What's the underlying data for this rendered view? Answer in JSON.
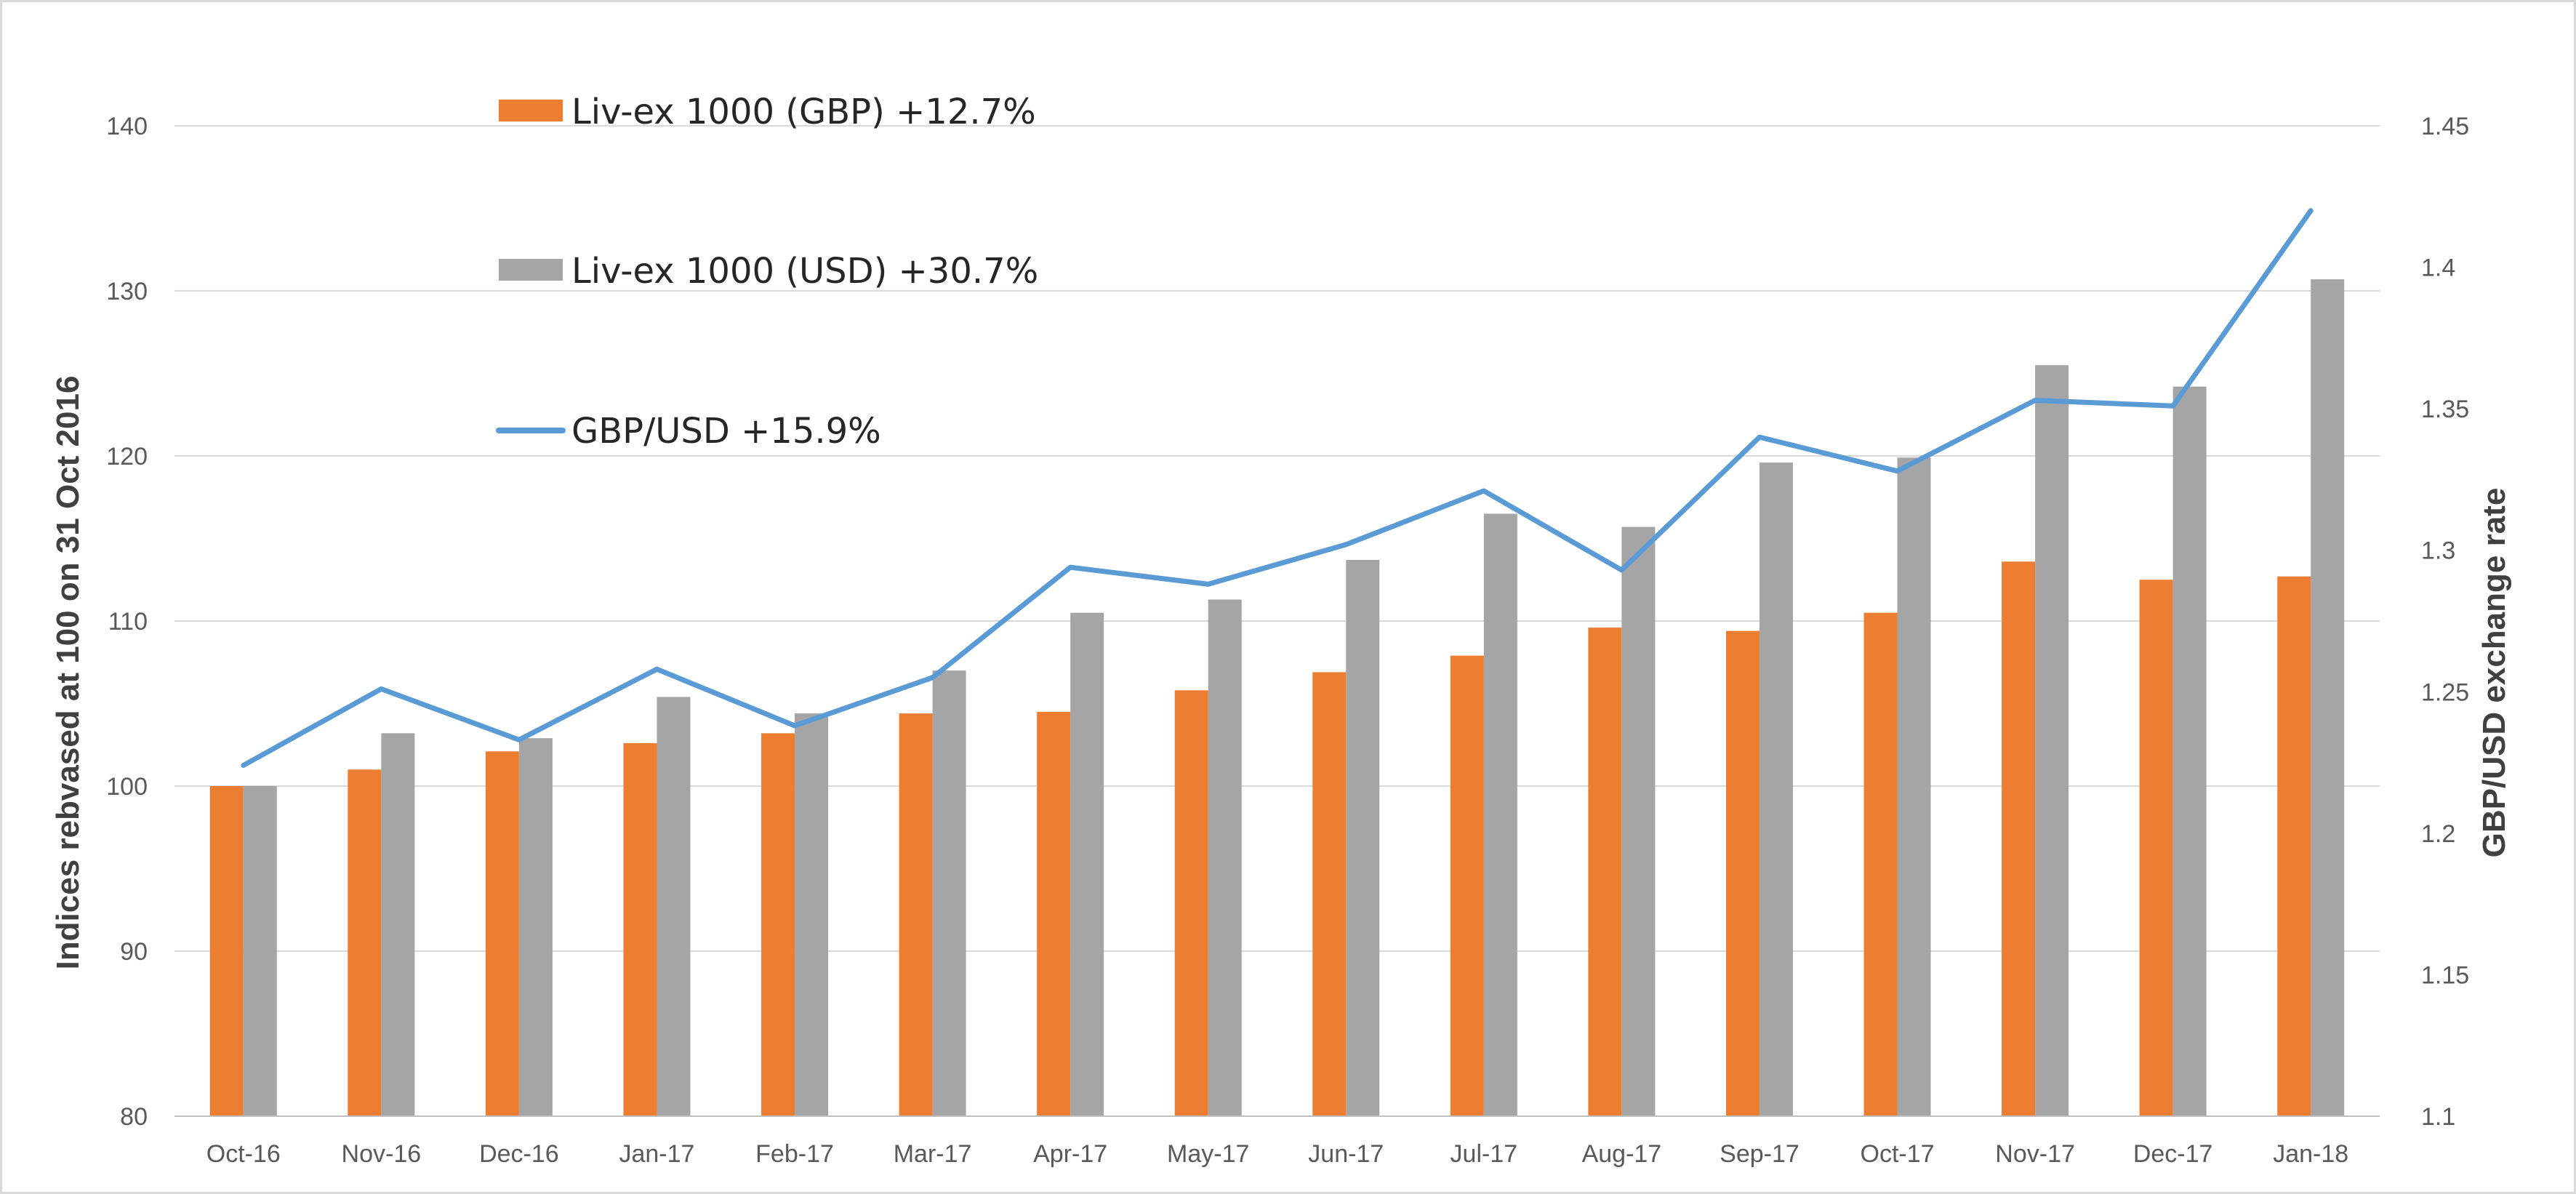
{
  "chart_data": {
    "type": "bar",
    "title": "",
    "categories": [
      "Oct-16",
      "Nov-16",
      "Dec-16",
      "Jan-17",
      "Feb-17",
      "Mar-17",
      "Apr-17",
      "May-17",
      "Jun-17",
      "Jul-17",
      "Aug-17",
      "Sep-17",
      "Oct-17",
      "Nov-17",
      "Dec-17",
      "Jan-18"
    ],
    "series": [
      {
        "name": "Liv-ex 1000 (GBP) +12.7%",
        "kind": "bar",
        "axis": "left",
        "color": "#ED7D31",
        "values": [
          100,
          101.0,
          102.1,
          102.6,
          103.2,
          104.4,
          104.5,
          105.8,
          106.9,
          107.9,
          109.6,
          109.4,
          110.5,
          113.6,
          112.5,
          112.7
        ]
      },
      {
        "name": "Liv-ex 1000 (USD) +30.7%",
        "kind": "bar",
        "axis": "left",
        "color": "#A5A5A5",
        "values": [
          100,
          103.2,
          102.9,
          105.4,
          104.4,
          107.0,
          110.5,
          111.3,
          113.7,
          116.5,
          115.7,
          119.6,
          119.9,
          125.5,
          124.2,
          130.7
        ]
      },
      {
        "name": "GBP/USD +15.9%",
        "kind": "line",
        "axis": "right",
        "color": "#5B9BD5",
        "values": [
          1.224,
          1.251,
          1.233,
          1.258,
          1.238,
          1.255,
          1.294,
          1.288,
          1.302,
          1.321,
          1.293,
          1.34,
          1.328,
          1.353,
          1.351,
          1.42
        ]
      }
    ],
    "y_left": {
      "label": "Indices rebvased at 100 on 31 Oct 2016",
      "min": 80,
      "max": 140,
      "ticks": [
        "80",
        "90",
        "100",
        "110",
        "120",
        "130",
        "140"
      ]
    },
    "y_right": {
      "label": "GBP/USD exchange rate",
      "min": 1.1,
      "max": 1.45,
      "ticks": [
        "1.1",
        "1.15",
        "1.2",
        "1.25",
        "1.3",
        "1.35",
        "1.4",
        "1.45"
      ]
    },
    "grid": true,
    "legend_position": "top-left"
  }
}
